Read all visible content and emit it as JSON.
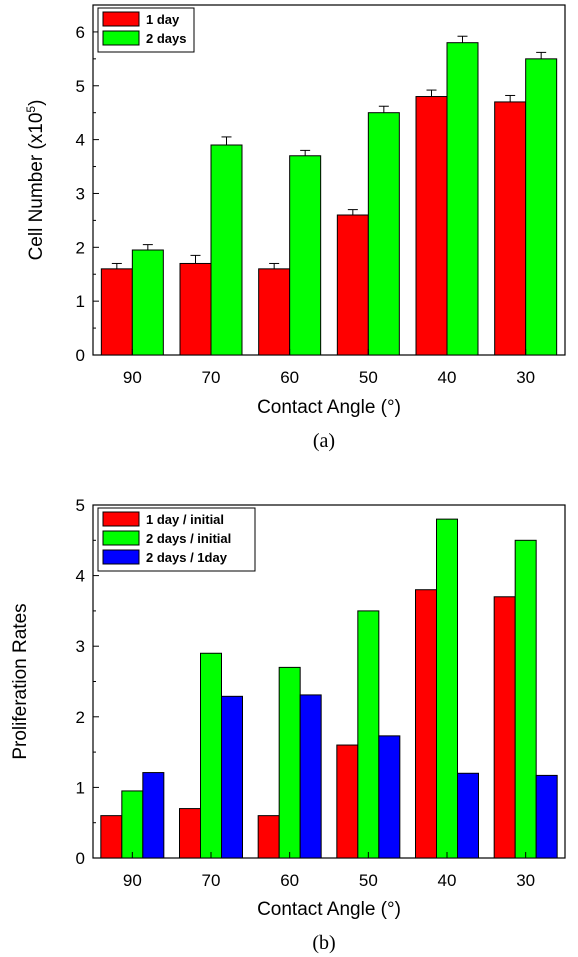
{
  "chart_data": [
    {
      "type": "bar",
      "caption": "(a)",
      "xlabel": "Contact Angle (°)",
      "ylabel_main": "Cell Number (x10",
      "ylabel_sup": "5",
      "ylabel_tail": ")",
      "ylim": [
        0,
        6.5
      ],
      "yticks": [
        "0",
        "1",
        "2",
        "3",
        "4",
        "5",
        "6"
      ],
      "categories": [
        "90",
        "70",
        "60",
        "50",
        "40",
        "30"
      ],
      "legend_position": "top-left",
      "error_bars": true,
      "series": [
        {
          "name": "1 day",
          "color": "#ff0000",
          "values": [
            1.6,
            1.7,
            1.6,
            2.6,
            4.8,
            4.7
          ],
          "errors": [
            0.1,
            0.15,
            0.1,
            0.1,
            0.12,
            0.12
          ]
        },
        {
          "name": "2 days",
          "color": "#00ff00",
          "values": [
            1.95,
            3.9,
            3.7,
            4.5,
            5.8,
            5.5
          ],
          "errors": [
            0.1,
            0.15,
            0.1,
            0.12,
            0.12,
            0.12
          ]
        }
      ]
    },
    {
      "type": "bar",
      "caption": "(b)",
      "xlabel": "Contact Angle (°)",
      "ylabel_main": "Proliferation Rates",
      "ylim": [
        0,
        5
      ],
      "yticks": [
        "0",
        "1",
        "2",
        "3",
        "4",
        "5"
      ],
      "categories": [
        "90",
        "70",
        "60",
        "50",
        "40",
        "30"
      ],
      "legend_position": "top-left",
      "error_bars": false,
      "series": [
        {
          "name": "1 day / initial",
          "color": "#ff0000",
          "values": [
            0.6,
            0.7,
            0.6,
            1.6,
            3.8,
            3.7
          ]
        },
        {
          "name": "2 days / initial",
          "color": "#00ff00",
          "values": [
            0.95,
            2.9,
            2.7,
            3.5,
            4.8,
            4.5
          ]
        },
        {
          "name": "2 days / 1day",
          "color": "#0000ff",
          "values": [
            1.21,
            2.29,
            2.31,
            1.73,
            1.2,
            1.17
          ]
        }
      ]
    }
  ]
}
